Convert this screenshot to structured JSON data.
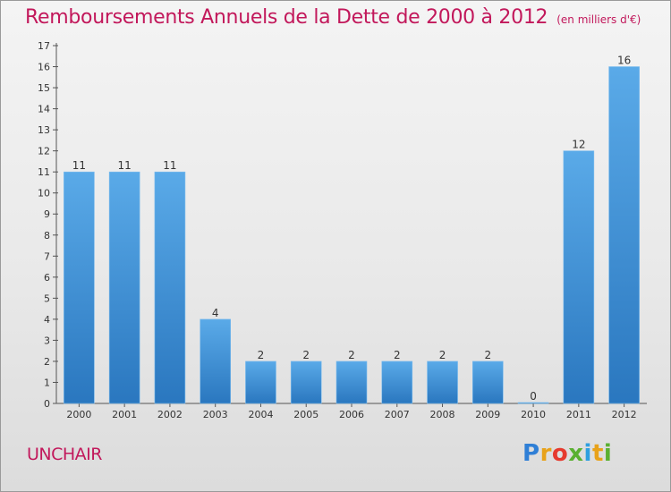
{
  "title": "Remboursements Annuels de la Dette de 2000 à 2012",
  "unit": "(en milliers d'€)",
  "commune": "UNCHAIR",
  "logo": {
    "text": "Proxiti"
  },
  "colors": {
    "bar": "#3d8fd2",
    "bar_light": "#5aaae8",
    "title": "#c2185b"
  },
  "chart_data": {
    "type": "bar",
    "categories": [
      "2000",
      "2001",
      "2002",
      "2003",
      "2004",
      "2005",
      "2006",
      "2007",
      "2008",
      "2009",
      "2010",
      "2011",
      "2012"
    ],
    "values": [
      11,
      11,
      11,
      4,
      2,
      2,
      2,
      2,
      2,
      2,
      0,
      12,
      16
    ],
    "data_labels": [
      "11",
      "11",
      "11",
      "4",
      "2",
      "2",
      "2",
      "2",
      "2",
      "2",
      "0",
      "12",
      "16"
    ],
    "y_ticks": [
      0,
      1,
      2,
      3,
      4,
      5,
      6,
      7,
      8,
      9,
      10,
      11,
      12,
      13,
      14,
      15,
      16,
      17
    ],
    "ylim": [
      0,
      17
    ],
    "grid": false,
    "legend": "none"
  }
}
